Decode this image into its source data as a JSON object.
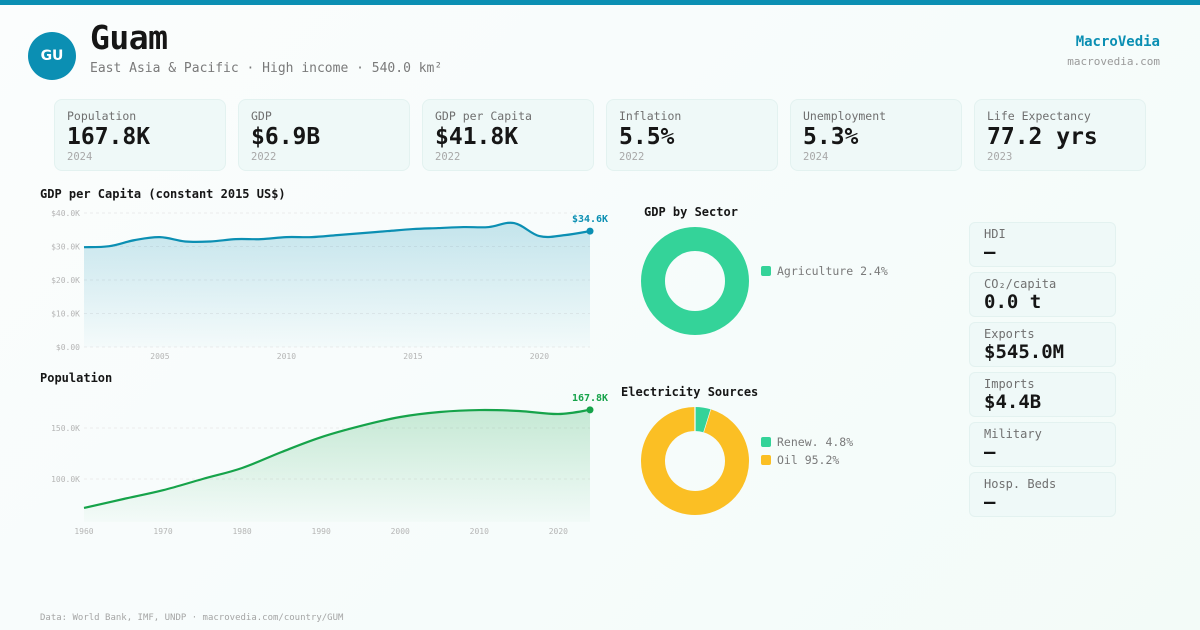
{
  "header": {
    "avatar_text": "GU",
    "title": "Guam",
    "subtitle": "East Asia & Pacific · High income · 540.0 km²",
    "brand": "MacroVedia",
    "brand_url": "macrovedia.com"
  },
  "colors": {
    "accent": "#0b8fb3",
    "population_green": "#16a34a",
    "agriculture": "#34d399",
    "renewables": "#34d399",
    "oil": "#fbbf24"
  },
  "kpis": [
    {
      "label": "Population",
      "value": "167.8K",
      "year": "2024"
    },
    {
      "label": "GDP",
      "value": "$6.9B",
      "year": "2022"
    },
    {
      "label": "GDP per Capita",
      "value": "$41.8K",
      "year": "2022"
    },
    {
      "label": "Inflation",
      "value": "5.5%",
      "year": "2022"
    },
    {
      "label": "Unemployment",
      "value": "5.3%",
      "year": "2024"
    },
    {
      "label": "Life Expectancy",
      "value": "77.2 yrs",
      "year": "2023"
    }
  ],
  "side_stats": [
    {
      "label": "HDI",
      "value": "—"
    },
    {
      "label": "CO₂/capita",
      "value": "0.0 t"
    },
    {
      "label": "Exports",
      "value": "$545.0M"
    },
    {
      "label": "Imports",
      "value": "$4.4B"
    },
    {
      "label": "Military",
      "value": "—"
    },
    {
      "label": "Hosp. Beds",
      "value": "—"
    }
  ],
  "footer": "Data: World Bank, IMF, UNDP · macrovedia.com/country/GUM",
  "chart_data": [
    {
      "id": "gdp_per_capita",
      "type": "area",
      "title": "GDP per Capita (constant 2015 US$)",
      "xlabel": "",
      "ylabel": "",
      "x": [
        2002,
        2003,
        2004,
        2005,
        2006,
        2007,
        2008,
        2009,
        2010,
        2011,
        2012,
        2013,
        2014,
        2015,
        2016,
        2017,
        2018,
        2019,
        2020,
        2021,
        2022
      ],
      "values": [
        29800,
        30100,
        31900,
        32800,
        31500,
        31500,
        32200,
        32200,
        32800,
        32800,
        33400,
        34000,
        34600,
        35200,
        35500,
        35800,
        35800,
        37000,
        33100,
        33400,
        34600
      ],
      "ylim": [
        0,
        40000
      ],
      "yticks": [
        0,
        10000,
        20000,
        30000,
        40000
      ],
      "ytick_labels": [
        "$0.00",
        "$10.0K",
        "$20.0K",
        "$30.0K",
        "$40.0K"
      ],
      "xticks": [
        2005,
        2010,
        2015,
        2020
      ],
      "xtick_labels": [
        "2005",
        "2010",
        "2015",
        "2020"
      ],
      "last_label": "$34.6K",
      "grid": true,
      "color": "#0b8fb3"
    },
    {
      "id": "population",
      "type": "area",
      "title": "Population",
      "xlabel": "",
      "ylabel": "",
      "x": [
        1960,
        1965,
        1970,
        1975,
        1980,
        1985,
        1990,
        1995,
        2000,
        2005,
        2010,
        2015,
        2020,
        2024
      ],
      "values": [
        71600,
        80400,
        89000,
        100000,
        110800,
        126500,
        141000,
        152000,
        160800,
        165700,
        167600,
        166700,
        163700,
        167800
      ],
      "ylim": [
        58000,
        172000
      ],
      "yticks": [
        100000,
        150000
      ],
      "ytick_labels": [
        "100.0K",
        "150.0K"
      ],
      "xticks": [
        1960,
        1970,
        1980,
        1990,
        2000,
        2010,
        2020
      ],
      "xtick_labels": [
        "1960",
        "1970",
        "1980",
        "1990",
        "2000",
        "2010",
        "2020"
      ],
      "last_label": "167.8K",
      "grid": true,
      "color": "#16a34a"
    },
    {
      "id": "gdp_by_sector",
      "type": "pie",
      "title": "GDP by Sector",
      "slices": [
        {
          "label": "Agriculture",
          "value": 2.4,
          "legend": "Agriculture 2.4%",
          "color": "#34d399"
        }
      ],
      "note": "Single available sector rendered as full ring"
    },
    {
      "id": "electricity_sources",
      "type": "pie",
      "title": "Electricity Sources",
      "slices": [
        {
          "label": "Renew.",
          "value": 4.8,
          "legend": "Renew. 4.8%",
          "color": "#34d399"
        },
        {
          "label": "Oil",
          "value": 95.2,
          "legend": "Oil 95.2%",
          "color": "#fbbf24"
        }
      ]
    }
  ]
}
